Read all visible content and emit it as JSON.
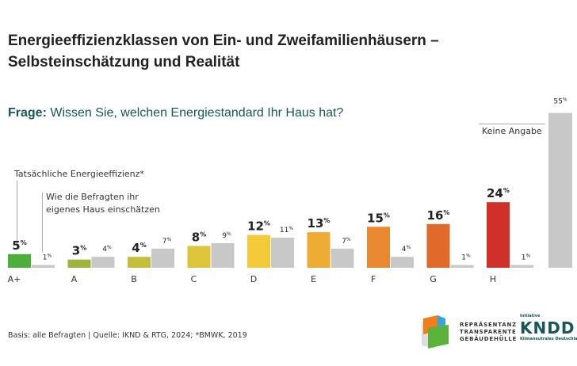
{
  "title_line1": "Energieeffizienzklassen von Ein- und Zweifamilienhäusern –",
  "title_line2": "Selbsteinschätzung und Realität",
  "question_label": "Frage:",
  "question_text": " Wissen Sie, welchen Energiestandard Ihr Haus hat?",
  "annotation_actual": "Tatsächliche Energieeffizienz*",
  "annotation_self_1": "Wie die Befragten ihr",
  "annotation_self_2": "eigenes Haus einschätzen",
  "annotation_none": "Keine Angabe",
  "footer": "Basis: alle Befragten | Quelle: IKND & RTG, 2024; *BMWK, 2019",
  "logos": {
    "rtg": "REPRÄSENTANZ TRANSPARENTE GEBÄUDEHÜLLE",
    "iknd_top": "Initiative",
    "iknd_main": "KNDD",
    "iknd_bottom": "Klimaneutrales Deutschland"
  },
  "chart_data": {
    "type": "bar",
    "categories": [
      "A+",
      "A",
      "B",
      "C",
      "D",
      "E",
      "F",
      "G",
      "H"
    ],
    "series": [
      {
        "name": "Tatsächliche Energieeffizienz*",
        "values": [
          5,
          3,
          4,
          8,
          12,
          13,
          15,
          16,
          24
        ],
        "colors": [
          "#4caf3a",
          "#9db33d",
          "#c3be3b",
          "#dcc43b",
          "#f4c93a",
          "#eeab34",
          "#e9892f",
          "#df6a2c",
          "#d1302a"
        ]
      },
      {
        "name": "Wie die Befragten ihr eigenes Haus einschätzen",
        "values": [
          1,
          4,
          7,
          9,
          11,
          7,
          4,
          1,
          1
        ],
        "color": "#c8c8c8"
      }
    ],
    "extra": {
      "label": "Keine Angabe",
      "value": 55,
      "color": "#c8c8c8"
    },
    "unit": "%",
    "ylim": [
      0,
      55
    ],
    "grid": false,
    "legend": "annotations"
  }
}
